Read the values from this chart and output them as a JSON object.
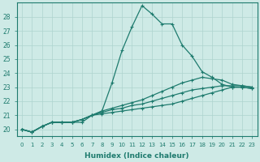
{
  "title": "",
  "xlabel": "Humidex (Indice chaleur)",
  "ylabel": "",
  "background_color": "#ceeae6",
  "grid_color": "#aed4cf",
  "line_color": "#1e7b6e",
  "xlim": [
    -0.5,
    23.5
  ],
  "ylim": [
    19.5,
    29.0
  ],
  "yticks": [
    20,
    21,
    22,
    23,
    24,
    25,
    26,
    27,
    28
  ],
  "xticks": [
    0,
    1,
    2,
    3,
    4,
    5,
    6,
    7,
    8,
    9,
    10,
    11,
    12,
    13,
    14,
    15,
    16,
    17,
    18,
    19,
    20,
    21,
    22,
    23
  ],
  "series": [
    [
      20.0,
      19.8,
      20.2,
      20.5,
      20.5,
      20.5,
      20.5,
      21.0,
      21.3,
      23.3,
      25.6,
      27.3,
      28.8,
      28.2,
      27.5,
      27.5,
      26.0,
      25.2,
      24.1,
      23.7,
      23.2,
      23.0,
      23.0,
      22.9
    ],
    [
      20.0,
      19.8,
      20.2,
      20.5,
      20.5,
      20.5,
      20.7,
      21.0,
      21.3,
      21.5,
      21.7,
      21.9,
      22.1,
      22.4,
      22.7,
      23.0,
      23.3,
      23.5,
      23.7,
      23.6,
      23.5,
      23.2,
      23.1,
      23.0
    ],
    [
      20.0,
      19.8,
      20.2,
      20.5,
      20.5,
      20.5,
      20.7,
      21.0,
      21.2,
      21.4,
      21.5,
      21.7,
      21.8,
      22.0,
      22.2,
      22.4,
      22.6,
      22.8,
      22.9,
      23.0,
      23.1,
      23.1,
      23.1,
      23.0
    ],
    [
      20.0,
      19.8,
      20.2,
      20.5,
      20.5,
      20.5,
      20.7,
      21.0,
      21.1,
      21.2,
      21.3,
      21.4,
      21.5,
      21.6,
      21.7,
      21.8,
      22.0,
      22.2,
      22.4,
      22.6,
      22.8,
      23.0,
      23.0,
      22.9
    ]
  ]
}
